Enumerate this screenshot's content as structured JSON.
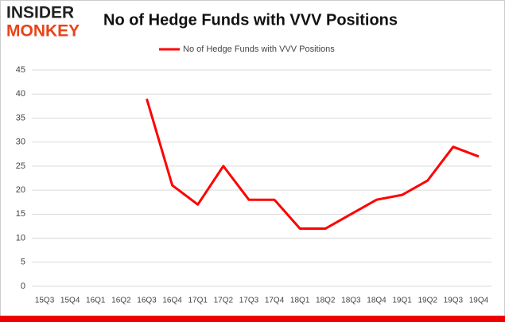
{
  "logo": {
    "top": "INSIDER",
    "bottom": "MONKEY"
  },
  "chart_data": {
    "type": "line",
    "title": "No of Hedge Funds with VVV Positions",
    "categories": [
      "15Q3",
      "15Q4",
      "16Q1",
      "16Q2",
      "16Q3",
      "16Q4",
      "17Q1",
      "17Q2",
      "17Q3",
      "17Q4",
      "18Q1",
      "18Q2",
      "18Q3",
      "18Q4",
      "19Q1",
      "19Q2",
      "19Q3",
      "19Q4"
    ],
    "series": [
      {
        "name": "No of Hedge Funds with VVV Positions",
        "color": "#ff0000",
        "values": [
          null,
          null,
          null,
          null,
          39,
          21,
          17,
          25,
          18,
          18,
          12,
          12,
          15,
          18,
          19,
          22,
          29,
          27
        ]
      }
    ],
    "ylim": [
      0,
      45
    ],
    "yticks": [
      0,
      5,
      10,
      15,
      20,
      25,
      30,
      35,
      40,
      45
    ],
    "grid": true,
    "legend": "top"
  }
}
